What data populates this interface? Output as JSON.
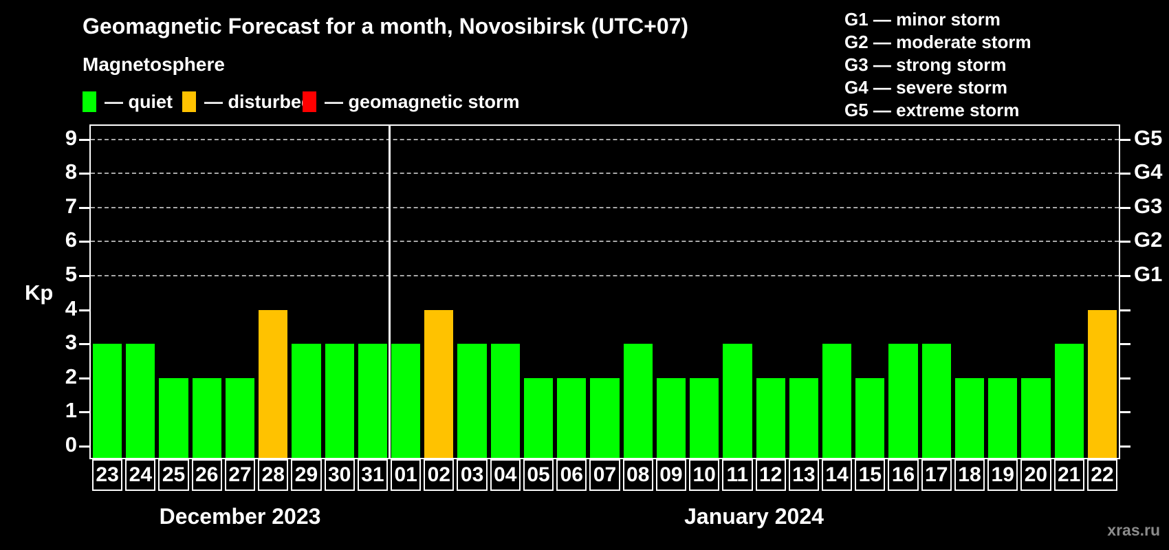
{
  "title": "Geomagnetic Forecast for a month, Novosibirsk (UTC+07)",
  "subtitle": "Magnetosphere",
  "activity_legend": [
    {
      "name": "quiet",
      "label": "— quiet",
      "color": "#00ff00"
    },
    {
      "name": "disturbed",
      "label": "— disturbed",
      "color": "#ffc200"
    },
    {
      "name": "storm",
      "label": "— geomagnetic storm",
      "color": "#ff0000"
    }
  ],
  "storm_scale_legend": [
    "G1 — minor storm",
    "G2 — moderate storm",
    "G3 — strong storm",
    "G4 — severe storm",
    "G5 — extreme storm"
  ],
  "watermark": "xras.ru",
  "colors": {
    "quiet": "#00ff00",
    "disturbed": "#ffc200",
    "storm": "#ff0000",
    "background": "#000000",
    "text": "#ffffff",
    "grid": "#a9a9a9",
    "watermark": "#8b8b8b"
  },
  "chart_data": {
    "type": "bar",
    "ylabel": "Kp",
    "ylim": [
      0,
      9
    ],
    "yticks": [
      0,
      1,
      2,
      3,
      4,
      5,
      6,
      7,
      8,
      9
    ],
    "grid": "dashed horizontal lines at Kp 5-9 only",
    "legend_position": "top",
    "right_axis": [
      {
        "label": "G1",
        "kp": 5
      },
      {
        "label": "G2",
        "kp": 6
      },
      {
        "label": "G3",
        "kp": 7
      },
      {
        "label": "G4",
        "kp": 8
      },
      {
        "label": "G5",
        "kp": 9
      }
    ],
    "color_rules": {
      "disturbed_kp": 4,
      "storm_min_kp": 5
    },
    "months": [
      {
        "label": "December 2023",
        "start_index": 0,
        "days": 9
      },
      {
        "label": "January 2024",
        "start_index": 9,
        "days": 22
      }
    ],
    "categories": [
      "23",
      "24",
      "25",
      "26",
      "27",
      "28",
      "29",
      "30",
      "31",
      "01",
      "02",
      "03",
      "04",
      "05",
      "06",
      "07",
      "08",
      "09",
      "10",
      "11",
      "12",
      "13",
      "14",
      "15",
      "16",
      "17",
      "18",
      "19",
      "20",
      "21",
      "22"
    ],
    "values": [
      3,
      3,
      2,
      2,
      2,
      4,
      3,
      3,
      3,
      3,
      4,
      3,
      3,
      2,
      2,
      2,
      3,
      2,
      2,
      3,
      2,
      2,
      3,
      2,
      3,
      3,
      2,
      2,
      2,
      3,
      4
    ]
  }
}
